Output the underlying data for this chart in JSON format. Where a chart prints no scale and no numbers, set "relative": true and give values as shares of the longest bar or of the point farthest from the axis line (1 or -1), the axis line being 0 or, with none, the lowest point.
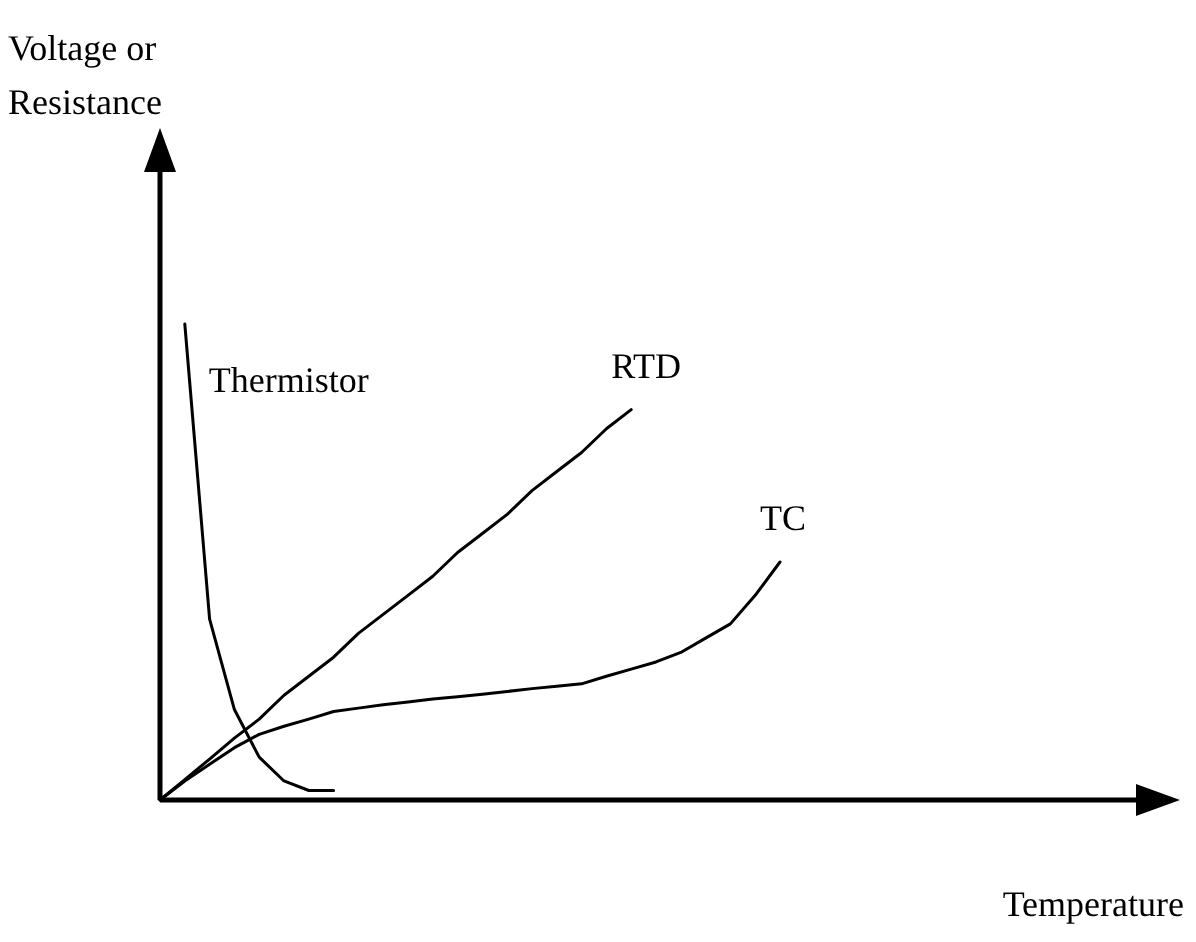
{
  "chart_data": {
    "type": "line",
    "relative": true,
    "annotations": [
      "Voltage or Resistance",
      "Temperature"
    ],
    "grid": false,
    "legend": false,
    "marker": "none",
    "line_style": "solid",
    "categories": [
      null,
      null,
      null,
      null,
      null,
      null,
      null,
      null,
      null,
      null,
      null,
      null,
      null,
      null,
      null,
      null,
      null,
      null,
      null,
      null,
      null,
      null,
      null,
      null,
      null,
      null
    ],
    "series": [
      {
        "name": "Thermistor",
        "color": "#000000",
        "values": [
          null,
          1,
          0.38,
          0.19,
          0.09,
          0.04,
          0.02,
          0.02,
          null,
          null,
          null,
          null,
          null,
          null,
          null,
          null,
          null,
          null,
          null,
          null,
          null,
          null,
          null,
          null,
          null,
          null
        ]
      },
      {
        "name": "RTD",
        "color": "#000000",
        "values": [
          0,
          0.043,
          0.086,
          0.13,
          0.17,
          0.22,
          0.26,
          0.3,
          0.35,
          0.39,
          0.43,
          0.47,
          0.52,
          0.56,
          0.6,
          0.65,
          0.69,
          0.73,
          0.78,
          0.82,
          null,
          null,
          null,
          null,
          null,
          null
        ]
      },
      {
        "name": "TC",
        "color": "#000000",
        "values": [
          0,
          0.04,
          0.075,
          0.11,
          0.138,
          0.155,
          0.17,
          0.186,
          0.193,
          0.2,
          0.206,
          0.212,
          0.217,
          0.222,
          0.228,
          0.234,
          0.239,
          0.244,
          0.26,
          0.275,
          0.29,
          0.31,
          0.34,
          0.37,
          0.43,
          0.5
        ]
      }
    ]
  }
}
